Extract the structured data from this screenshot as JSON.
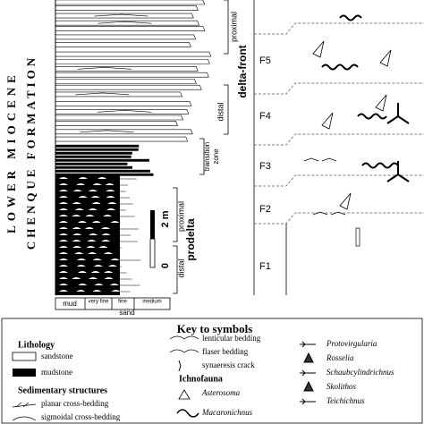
{
  "figure": {
    "side_labels": [
      "LOWER MIOCENE",
      "CHENQUE FORMATION"
    ],
    "zones": {
      "delta_front": "delta-front",
      "delta_front_proximal": "proximal",
      "delta_front_distal": "distal",
      "transition_zone": [
        "transition",
        "zone"
      ],
      "prodelta": "prodelta",
      "prodelta_proximal": "proximal",
      "prodelta_distal": "distal"
    },
    "scale": [
      "2 m",
      "0"
    ],
    "facies": [
      "F5",
      "F4",
      "F3",
      "F2",
      "F1"
    ],
    "grain_size": {
      "mud": "mud",
      "very_fine": "very fine",
      "fine": "fine",
      "medium": "medium",
      "sand": "sand"
    }
  },
  "key": {
    "title": "Key to symbols",
    "lithology": {
      "heading": "Lithology",
      "items": [
        "sandstone",
        "mudstone"
      ]
    },
    "structures": {
      "heading": "Sedimentary structures",
      "items": [
        "planar cross-bedding",
        "sigmoidal cross-bedding",
        "lenticular bedding",
        "flaser bedding",
        "synaeresis crack"
      ]
    },
    "ichnofauna": {
      "heading": "Ichnofauna",
      "items": [
        "Asterosoma",
        "Macaronichnus",
        "Protovirgularia",
        "Rosselia",
        "Schaubcylindrichnus",
        "Skolithos",
        "Teichichnus"
      ]
    }
  }
}
